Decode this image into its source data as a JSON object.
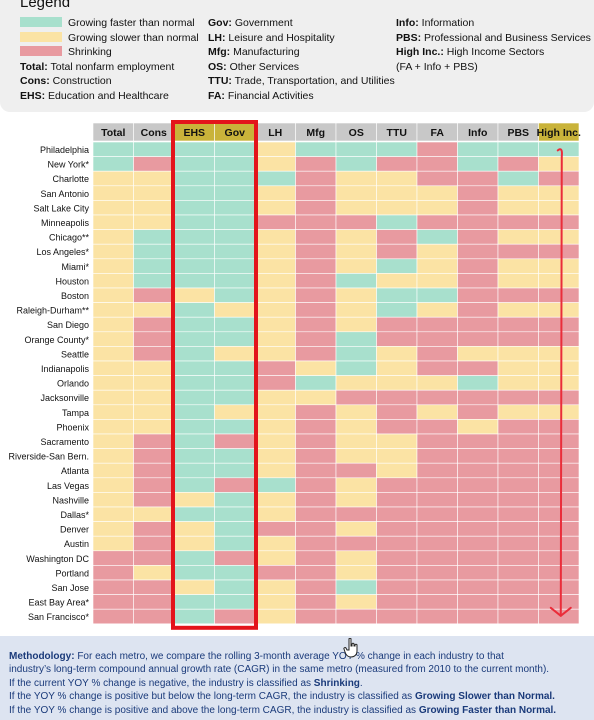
{
  "legend": {
    "title": "Legend",
    "colors": {
      "faster": "#a8e0cd",
      "slower": "#fbe3a4",
      "shrinking": "#e89aa0"
    },
    "items": [
      {
        "key": "faster",
        "label": "Growing faster than normal"
      },
      {
        "key": "slower",
        "label": "Growing slower than normal"
      },
      {
        "key": "shrinking",
        "label": "Shrinking"
      }
    ],
    "abbrev_col1": [
      {
        "abbr": "Total:",
        "text": "Total nonfarm employment"
      },
      {
        "abbr": "Cons:",
        "text": "Construction"
      },
      {
        "abbr": "EHS:",
        "text": "Education and Healthcare"
      }
    ],
    "abbrev_col2": [
      {
        "abbr": "Gov:",
        "text": "Government"
      },
      {
        "abbr": "LH:",
        "text": "Leisure and Hospitality"
      },
      {
        "abbr": "Mfg:",
        "text": "Manufacturing"
      },
      {
        "abbr": "OS:",
        "text": "Other Services"
      },
      {
        "abbr": "TTU:",
        "text": "Trade, Transportation, and Utilities"
      },
      {
        "abbr": "FA:",
        "text": "Financial Activities"
      }
    ],
    "abbrev_col3": [
      {
        "abbr": "Info:",
        "text": "Information"
      },
      {
        "abbr": "PBS:",
        "text": "Professional and Business Services"
      },
      {
        "abbr": "High Inc.:",
        "text": "High Income Sectors"
      },
      {
        "abbr": "",
        "text": "(FA + Info + PBS)"
      }
    ]
  },
  "chart_data": {
    "type": "heatmap",
    "columns": [
      "Total",
      "Cons",
      "EHS",
      "Gov",
      "LH",
      "Mfg",
      "OS",
      "TTU",
      "FA",
      "Info",
      "PBS",
      "High Inc."
    ],
    "highlighted_columns": [
      "EHS",
      "Gov",
      "High Inc."
    ],
    "highlight_header_color": "#c9b33a",
    "header_color": "#c8c8c8",
    "annotation_box_color": "#e3141b",
    "annotation_arrow_color": "#ea2d3a",
    "rows": [
      {
        "metro": "Philadelphia",
        "cells": [
          "F",
          "F",
          "F",
          "F",
          "S",
          "F",
          "F",
          "F",
          "R",
          "F",
          "F",
          "F"
        ]
      },
      {
        "metro": "New York*",
        "cells": [
          "F",
          "R",
          "F",
          "F",
          "S",
          "R",
          "F",
          "R",
          "R",
          "F",
          "R",
          "S"
        ]
      },
      {
        "metro": "Charlotte",
        "cells": [
          "S",
          "S",
          "F",
          "F",
          "F",
          "R",
          "S",
          "S",
          "R",
          "R",
          "F",
          "R"
        ]
      },
      {
        "metro": "San Antonio",
        "cells": [
          "S",
          "S",
          "F",
          "F",
          "S",
          "R",
          "S",
          "S",
          "S",
          "R",
          "S",
          "S"
        ]
      },
      {
        "metro": "Salt Lake City",
        "cells": [
          "S",
          "S",
          "F",
          "F",
          "S",
          "R",
          "S",
          "S",
          "S",
          "R",
          "S",
          "S"
        ]
      },
      {
        "metro": "Minneapolis",
        "cells": [
          "S",
          "S",
          "F",
          "F",
          "R",
          "R",
          "R",
          "F",
          "R",
          "R",
          "R",
          "R"
        ]
      },
      {
        "metro": "Chicago**",
        "cells": [
          "S",
          "F",
          "F",
          "F",
          "S",
          "R",
          "S",
          "R",
          "F",
          "R",
          "S",
          "S"
        ]
      },
      {
        "metro": "Los Angeles*",
        "cells": [
          "S",
          "F",
          "F",
          "F",
          "S",
          "R",
          "S",
          "R",
          "S",
          "R",
          "R",
          "R"
        ]
      },
      {
        "metro": "Miami*",
        "cells": [
          "S",
          "F",
          "F",
          "F",
          "S",
          "R",
          "S",
          "F",
          "S",
          "R",
          "S",
          "S"
        ]
      },
      {
        "metro": "Houston",
        "cells": [
          "S",
          "F",
          "F",
          "F",
          "S",
          "R",
          "F",
          "S",
          "S",
          "R",
          "S",
          "S"
        ]
      },
      {
        "metro": "Boston",
        "cells": [
          "S",
          "R",
          "S",
          "F",
          "S",
          "R",
          "S",
          "F",
          "F",
          "R",
          "R",
          "R"
        ]
      },
      {
        "metro": "Raleigh-Durham**",
        "cells": [
          "S",
          "S",
          "F",
          "S",
          "S",
          "R",
          "S",
          "F",
          "S",
          "R",
          "S",
          "S"
        ]
      },
      {
        "metro": "San Diego",
        "cells": [
          "S",
          "R",
          "F",
          "F",
          "S",
          "R",
          "S",
          "R",
          "R",
          "R",
          "R",
          "R"
        ]
      },
      {
        "metro": "Orange County*",
        "cells": [
          "S",
          "R",
          "F",
          "F",
          "S",
          "R",
          "F",
          "R",
          "R",
          "R",
          "R",
          "R"
        ]
      },
      {
        "metro": "Seattle",
        "cells": [
          "S",
          "R",
          "F",
          "S",
          "S",
          "R",
          "F",
          "S",
          "R",
          "S",
          "S",
          "S"
        ]
      },
      {
        "metro": "Indianapolis",
        "cells": [
          "S",
          "S",
          "F",
          "F",
          "R",
          "S",
          "F",
          "S",
          "R",
          "R",
          "S",
          "S"
        ]
      },
      {
        "metro": "Orlando",
        "cells": [
          "S",
          "S",
          "F",
          "F",
          "R",
          "F",
          "S",
          "S",
          "S",
          "F",
          "S",
          "S"
        ]
      },
      {
        "metro": "Jacksonville",
        "cells": [
          "S",
          "S",
          "F",
          "F",
          "S",
          "S",
          "R",
          "R",
          "R",
          "R",
          "R",
          "R"
        ]
      },
      {
        "metro": "Tampa",
        "cells": [
          "S",
          "S",
          "F",
          "S",
          "S",
          "R",
          "S",
          "R",
          "S",
          "R",
          "S",
          "S"
        ]
      },
      {
        "metro": "Phoenix",
        "cells": [
          "S",
          "S",
          "F",
          "F",
          "S",
          "R",
          "S",
          "R",
          "R",
          "S",
          "R",
          "R"
        ]
      },
      {
        "metro": "Sacramento",
        "cells": [
          "S",
          "R",
          "F",
          "R",
          "S",
          "R",
          "S",
          "S",
          "R",
          "R",
          "R",
          "R"
        ]
      },
      {
        "metro": "Riverside-San Bern.",
        "cells": [
          "S",
          "R",
          "F",
          "F",
          "S",
          "R",
          "S",
          "S",
          "R",
          "R",
          "R",
          "R"
        ]
      },
      {
        "metro": "Atlanta",
        "cells": [
          "S",
          "R",
          "F",
          "F",
          "S",
          "R",
          "R",
          "S",
          "R",
          "R",
          "R",
          "R"
        ]
      },
      {
        "metro": "Las Vegas",
        "cells": [
          "S",
          "R",
          "F",
          "R",
          "F",
          "R",
          "S",
          "R",
          "R",
          "R",
          "R",
          "R"
        ]
      },
      {
        "metro": "Nashville",
        "cells": [
          "S",
          "R",
          "S",
          "F",
          "S",
          "R",
          "S",
          "R",
          "R",
          "R",
          "R",
          "R"
        ]
      },
      {
        "metro": "Dallas*",
        "cells": [
          "S",
          "S",
          "F",
          "F",
          "S",
          "R",
          "R",
          "R",
          "R",
          "R",
          "R",
          "R"
        ]
      },
      {
        "metro": "Denver",
        "cells": [
          "S",
          "R",
          "S",
          "F",
          "R",
          "R",
          "S",
          "R",
          "R",
          "R",
          "R",
          "R"
        ]
      },
      {
        "metro": "Austin",
        "cells": [
          "S",
          "R",
          "S",
          "F",
          "S",
          "R",
          "R",
          "R",
          "R",
          "R",
          "R",
          "R"
        ]
      },
      {
        "metro": "Washington DC",
        "cells": [
          "R",
          "R",
          "F",
          "R",
          "S",
          "R",
          "S",
          "R",
          "R",
          "R",
          "R",
          "R"
        ]
      },
      {
        "metro": "Portland",
        "cells": [
          "R",
          "S",
          "F",
          "F",
          "R",
          "R",
          "S",
          "R",
          "R",
          "R",
          "R",
          "R"
        ]
      },
      {
        "metro": "San Jose",
        "cells": [
          "R",
          "R",
          "S",
          "F",
          "S",
          "R",
          "F",
          "R",
          "R",
          "R",
          "R",
          "R"
        ]
      },
      {
        "metro": "East Bay Area*",
        "cells": [
          "R",
          "R",
          "F",
          "F",
          "S",
          "R",
          "S",
          "R",
          "R",
          "R",
          "R",
          "R"
        ]
      },
      {
        "metro": "San Francisco*",
        "cells": [
          "R",
          "R",
          "F",
          "R",
          "S",
          "R",
          "R",
          "R",
          "R",
          "R",
          "R",
          "R"
        ]
      }
    ],
    "cell_legend": {
      "F": "faster",
      "S": "slower",
      "R": "shrinking"
    }
  },
  "methodology": {
    "lines": [
      [
        {
          "b": "Methodology:"
        },
        {
          "t": " For each metro, we compare the rolling 3-month average YOY % change in each industry to that"
        }
      ],
      [
        {
          "t": "industry’s long-term compound annual growth rate (CAGR) in the same metro (measured from 2010 to the current month)."
        }
      ],
      [
        {
          "t": "If the current YOY % change is negative, the industry is classified as "
        },
        {
          "b": "Shrinking"
        },
        {
          "t": "."
        }
      ],
      [
        {
          "t": "If the YOY % change is positive but below the long-term CAGR, the industry is classified as "
        },
        {
          "b": "Growing Slower than Normal."
        }
      ],
      [
        {
          "t": "If the YOY % change is positive and above the long-term CAGR, the industry is classified as "
        },
        {
          "b": "Growing Faster than Normal."
        }
      ]
    ]
  }
}
